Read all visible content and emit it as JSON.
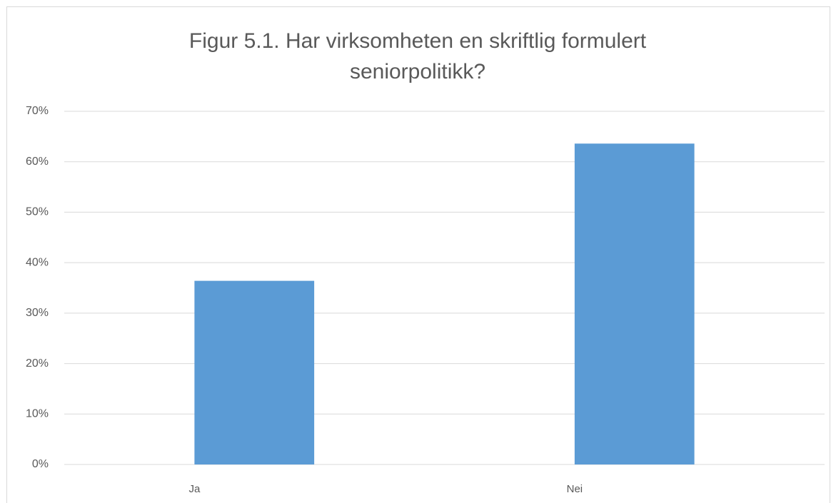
{
  "chart_data": {
    "type": "bar",
    "title": "Figur 5.1. Har virksomheten en skriftlig formulert seniorpolitikk?",
    "categories": [
      "Ja",
      "Nei"
    ],
    "values": [
      36.4,
      63.6
    ],
    "color": "#5b9bd5",
    "ylim": [
      0,
      70
    ],
    "yticks": [
      {
        "value": 0,
        "label": "0%"
      },
      {
        "value": 10,
        "label": "10%"
      },
      {
        "value": 20,
        "label": "20%"
      },
      {
        "value": 30,
        "label": "30%"
      },
      {
        "value": 40,
        "label": "40%"
      },
      {
        "value": 50,
        "label": "50%"
      },
      {
        "value": 60,
        "label": "60%"
      },
      {
        "value": 70,
        "label": "70%"
      }
    ],
    "grid": true
  }
}
